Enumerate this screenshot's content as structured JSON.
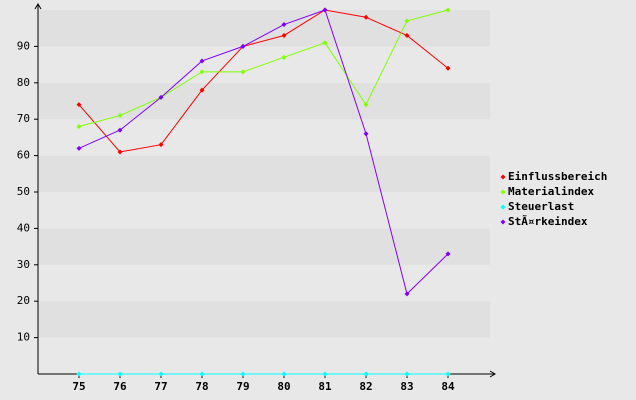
{
  "chart_data": {
    "type": "line",
    "categories": [
      "75",
      "76",
      "77",
      "78",
      "79",
      "80",
      "81",
      "82",
      "83",
      "84"
    ],
    "series": [
      {
        "name": "Einflussbereich",
        "color": "#ff0000",
        "values": [
          74,
          61,
          63,
          78,
          90,
          93,
          100,
          98,
          93,
          84
        ]
      },
      {
        "name": "Materialindex",
        "color": "#80ff00",
        "values": [
          68,
          71,
          76,
          83,
          83,
          87,
          91,
          74,
          97,
          100
        ]
      },
      {
        "name": "Steuerlast",
        "color": "#00ffff",
        "values": [
          0,
          0,
          0,
          0,
          0,
          0,
          0,
          0,
          0,
          0
        ]
      },
      {
        "name": "StÃ¤rkeindex",
        "color": "#8000ff",
        "values": [
          62,
          67,
          76,
          86,
          90,
          96,
          100,
          66,
          22,
          33
        ]
      }
    ],
    "ylim": [
      0,
      100
    ],
    "yticks": [
      10,
      20,
      30,
      40,
      50,
      60,
      70,
      80,
      90
    ],
    "grid": true,
    "legend": "right"
  }
}
